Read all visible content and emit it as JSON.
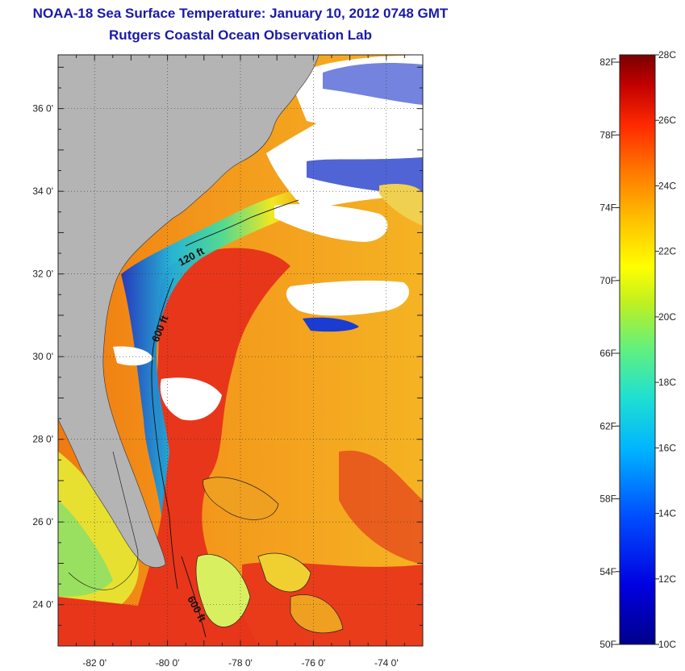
{
  "title": "NOAA-18 Sea Surface Temperature:  January 10, 2012 0748 GMT",
  "subtitle": "Rutgers Coastal Ocean Observation Lab",
  "map": {
    "lat_labels": [
      "36 0'",
      "34 0'",
      "32 0'",
      "30 0'",
      "28 0'",
      "26 0'",
      "24 0'"
    ],
    "lon_labels": [
      "-82 0'",
      "-80 0'",
      "-78 0'",
      "-76 0'",
      "-74 0'"
    ],
    "lat_values": [
      36,
      34,
      32,
      30,
      28,
      26,
      24
    ],
    "lon_values": [
      -82,
      -80,
      -78,
      -76,
      -74
    ],
    "lon_range": [
      -83,
      -73
    ],
    "lat_range": [
      23,
      37.3
    ],
    "isobaths": [
      {
        "label": "120 ft"
      },
      {
        "label": "600 ft"
      },
      {
        "label": "600 ft"
      }
    ],
    "colors": {
      "land": "#b4b4b4",
      "cloud": "#ffffff",
      "warm": "#e83010",
      "mid": "#f5a21a"
    }
  },
  "colorbar": {
    "fahrenheit_labels": [
      "82F",
      "78F",
      "74F",
      "70F",
      "66F",
      "62F",
      "58F",
      "54F",
      "50F"
    ],
    "celsius_labels": [
      "28C",
      "26C",
      "24C",
      "22C",
      "20C",
      "18C",
      "16C",
      "14C",
      "12C",
      "10C"
    ],
    "min_c": 10,
    "max_c": 28
  }
}
